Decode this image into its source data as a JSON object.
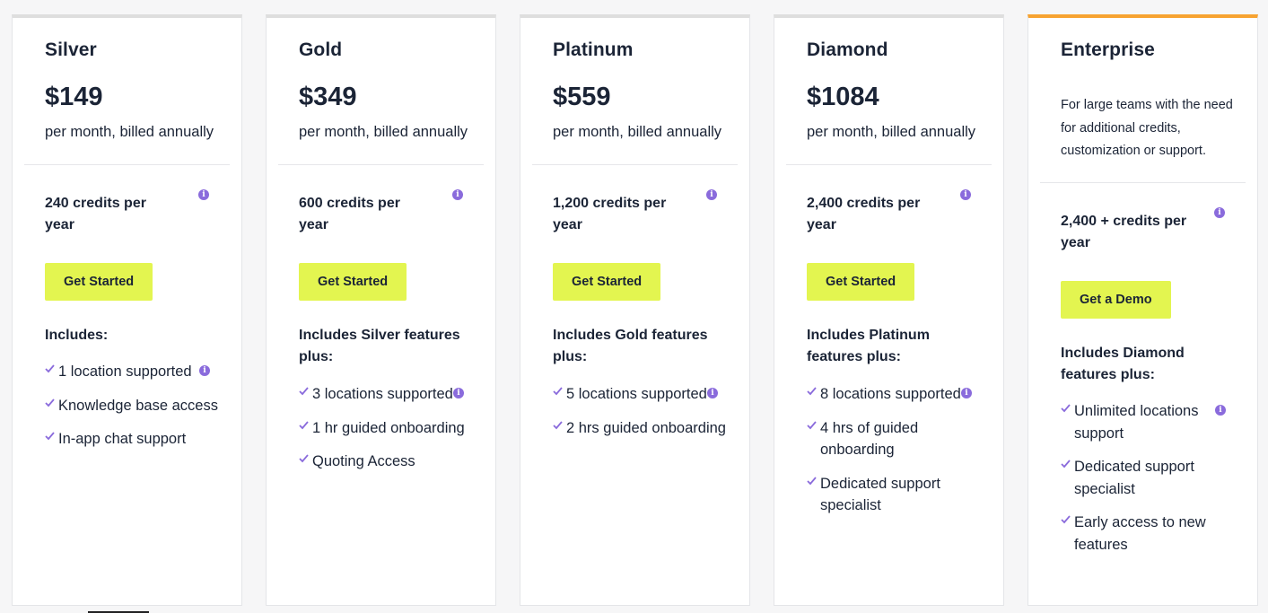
{
  "colors": {
    "cta_background": "#e3f550",
    "highlight_border": "#f7a331",
    "info_icon": "#8a6bdc",
    "check_icon": "#8a6bdc",
    "text": "#1b2436"
  },
  "plans": [
    {
      "name": "Silver",
      "price": "$149",
      "period": "per month, billed annually",
      "credits": "240 credits per year",
      "cta": "Get Started",
      "includes_title": "Includes:",
      "features": [
        "1 location supported",
        "Knowledge base access",
        "In-app chat support"
      ]
    },
    {
      "name": "Gold",
      "price": "$349",
      "period": "per month, billed annually",
      "credits": "600 credits per year",
      "cta": "Get Started",
      "includes_title": "Includes Silver features plus:",
      "features": [
        "3 locations supported",
        "1 hr guided onboarding",
        "Quoting Access"
      ]
    },
    {
      "name": "Platinum",
      "price": "$559",
      "period": "per month, billed annually",
      "credits": "1,200 credits per year",
      "cta": "Get Started",
      "includes_title": "Includes Gold features plus:",
      "features": [
        "5 locations supported",
        "2 hrs guided onboarding"
      ]
    },
    {
      "name": "Diamond",
      "price": "$1084",
      "period": "per month, billed annually",
      "credits": "2,400 credits per year",
      "cta": "Get Started",
      "includes_title": "Includes Platinum features plus:",
      "features": [
        "8 locations supported",
        "4 hrs of guided onboarding",
        "Dedicated support specialist"
      ]
    },
    {
      "name": "Enterprise",
      "description": "For large teams with the need for additional credits, customization or support.",
      "credits": "2,400 + credits per year",
      "cta": "Get a Demo",
      "includes_title": "Includes Diamond features plus:",
      "features": [
        "Unlimited locations support",
        "Dedicated support specialist",
        "Early access to new features"
      ]
    }
  ],
  "icons": {
    "info": "info-icon",
    "check": "check-icon"
  }
}
